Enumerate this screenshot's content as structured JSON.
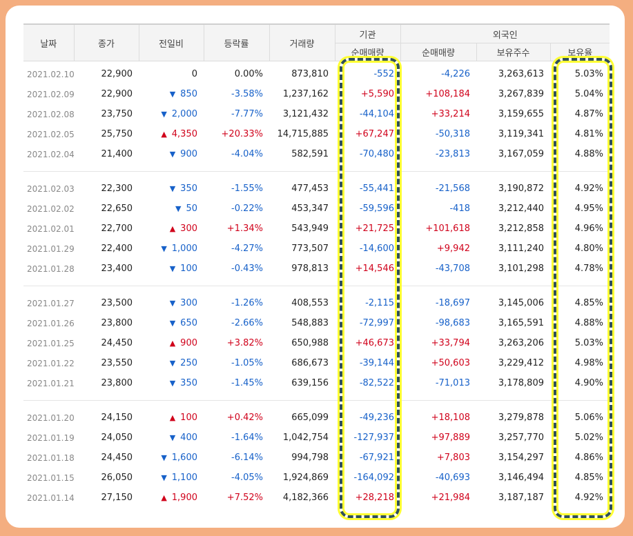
{
  "header": {
    "date": "날짜",
    "close": "종가",
    "change": "전일비",
    "rate": "등락률",
    "volume": "거래량",
    "institution": "기관",
    "institution_net": "순매매량",
    "foreign": "외국인",
    "foreign_net": "순매매량",
    "foreign_holdings": "보유주수",
    "foreign_ratio": "보유율"
  },
  "groups": [
    [
      {
        "date": "2021.02.10",
        "close": "22,900",
        "dir": "flat",
        "change": "0",
        "rate": "0.00%",
        "volume": "873,810",
        "inst": "-552",
        "fnet": "-4,226",
        "hold": "3,263,613",
        "ratio": "5.03%"
      },
      {
        "date": "2021.02.09",
        "close": "22,900",
        "dir": "down",
        "change": "850",
        "rate": "-3.58%",
        "volume": "1,237,162",
        "inst": "+5,590",
        "fnet": "+108,184",
        "hold": "3,267,839",
        "ratio": "5.04%"
      },
      {
        "date": "2021.02.08",
        "close": "23,750",
        "dir": "down",
        "change": "2,000",
        "rate": "-7.77%",
        "volume": "3,121,432",
        "inst": "-44,104",
        "fnet": "+33,214",
        "hold": "3,159,655",
        "ratio": "4.87%"
      },
      {
        "date": "2021.02.05",
        "close": "25,750",
        "dir": "up",
        "change": "4,350",
        "rate": "+20.33%",
        "volume": "14,715,885",
        "inst": "+67,247",
        "fnet": "-50,318",
        "hold": "3,119,341",
        "ratio": "4.81%"
      },
      {
        "date": "2021.02.04",
        "close": "21,400",
        "dir": "down",
        "change": "900",
        "rate": "-4.04%",
        "volume": "582,591",
        "inst": "-70,480",
        "fnet": "-23,813",
        "hold": "3,167,059",
        "ratio": "4.88%"
      }
    ],
    [
      {
        "date": "2021.02.03",
        "close": "22,300",
        "dir": "down",
        "change": "350",
        "rate": "-1.55%",
        "volume": "477,453",
        "inst": "-55,441",
        "fnet": "-21,568",
        "hold": "3,190,872",
        "ratio": "4.92%"
      },
      {
        "date": "2021.02.02",
        "close": "22,650",
        "dir": "down",
        "change": "50",
        "rate": "-0.22%",
        "volume": "453,347",
        "inst": "-59,596",
        "fnet": "-418",
        "hold": "3,212,440",
        "ratio": "4.95%"
      },
      {
        "date": "2021.02.01",
        "close": "22,700",
        "dir": "up",
        "change": "300",
        "rate": "+1.34%",
        "volume": "543,949",
        "inst": "+21,725",
        "fnet": "+101,618",
        "hold": "3,212,858",
        "ratio": "4.96%"
      },
      {
        "date": "2021.01.29",
        "close": "22,400",
        "dir": "down",
        "change": "1,000",
        "rate": "-4.27%",
        "volume": "773,507",
        "inst": "-14,600",
        "fnet": "+9,942",
        "hold": "3,111,240",
        "ratio": "4.80%"
      },
      {
        "date": "2021.01.28",
        "close": "23,400",
        "dir": "down",
        "change": "100",
        "rate": "-0.43%",
        "volume": "978,813",
        "inst": "+14,546",
        "fnet": "-43,708",
        "hold": "3,101,298",
        "ratio": "4.78%"
      }
    ],
    [
      {
        "date": "2021.01.27",
        "close": "23,500",
        "dir": "down",
        "change": "300",
        "rate": "-1.26%",
        "volume": "408,553",
        "inst": "-2,115",
        "fnet": "-18,697",
        "hold": "3,145,006",
        "ratio": "4.85%"
      },
      {
        "date": "2021.01.26",
        "close": "23,800",
        "dir": "down",
        "change": "650",
        "rate": "-2.66%",
        "volume": "548,883",
        "inst": "-72,997",
        "fnet": "-98,683",
        "hold": "3,165,591",
        "ratio": "4.88%"
      },
      {
        "date": "2021.01.25",
        "close": "24,450",
        "dir": "up",
        "change": "900",
        "rate": "+3.82%",
        "volume": "650,988",
        "inst": "+46,673",
        "fnet": "+33,794",
        "hold": "3,263,206",
        "ratio": "5.03%"
      },
      {
        "date": "2021.01.22",
        "close": "23,550",
        "dir": "down",
        "change": "250",
        "rate": "-1.05%",
        "volume": "686,673",
        "inst": "-39,144",
        "fnet": "+50,603",
        "hold": "3,229,412",
        "ratio": "4.98%"
      },
      {
        "date": "2021.01.21",
        "close": "23,800",
        "dir": "down",
        "change": "350",
        "rate": "-1.45%",
        "volume": "639,156",
        "inst": "-82,522",
        "fnet": "-71,013",
        "hold": "3,178,809",
        "ratio": "4.90%"
      }
    ],
    [
      {
        "date": "2021.01.20",
        "close": "24,150",
        "dir": "up",
        "change": "100",
        "rate": "+0.42%",
        "volume": "665,099",
        "inst": "-49,236",
        "fnet": "+18,108",
        "hold": "3,279,878",
        "ratio": "5.06%"
      },
      {
        "date": "2021.01.19",
        "close": "24,050",
        "dir": "down",
        "change": "400",
        "rate": "-1.64%",
        "volume": "1,042,754",
        "inst": "-127,937",
        "fnet": "+97,889",
        "hold": "3,257,770",
        "ratio": "5.02%"
      },
      {
        "date": "2021.01.18",
        "close": "24,450",
        "dir": "down",
        "change": "1,600",
        "rate": "-6.14%",
        "volume": "994,798",
        "inst": "-67,921",
        "fnet": "+7,803",
        "hold": "3,154,297",
        "ratio": "4.86%"
      },
      {
        "date": "2021.01.15",
        "close": "26,050",
        "dir": "down",
        "change": "1,100",
        "rate": "-4.05%",
        "volume": "1,924,869",
        "inst": "-164,092",
        "fnet": "-40,693",
        "hold": "3,146,494",
        "ratio": "4.85%"
      },
      {
        "date": "2021.01.14",
        "close": "27,150",
        "dir": "up",
        "change": "1,900",
        "rate": "+7.52%",
        "volume": "4,182,366",
        "inst": "+28,218",
        "fnet": "+21,984",
        "hold": "3,187,187",
        "ratio": "4.92%"
      }
    ]
  ],
  "colors": {
    "up": "#d0021b",
    "down": "#1761c9",
    "highlight_border": "#2f4f5a",
    "highlight_glow": "#ffff33",
    "background": "#f4ae80"
  },
  "icons": {
    "up": "triangle-up-icon",
    "down": "triangle-down-icon"
  }
}
